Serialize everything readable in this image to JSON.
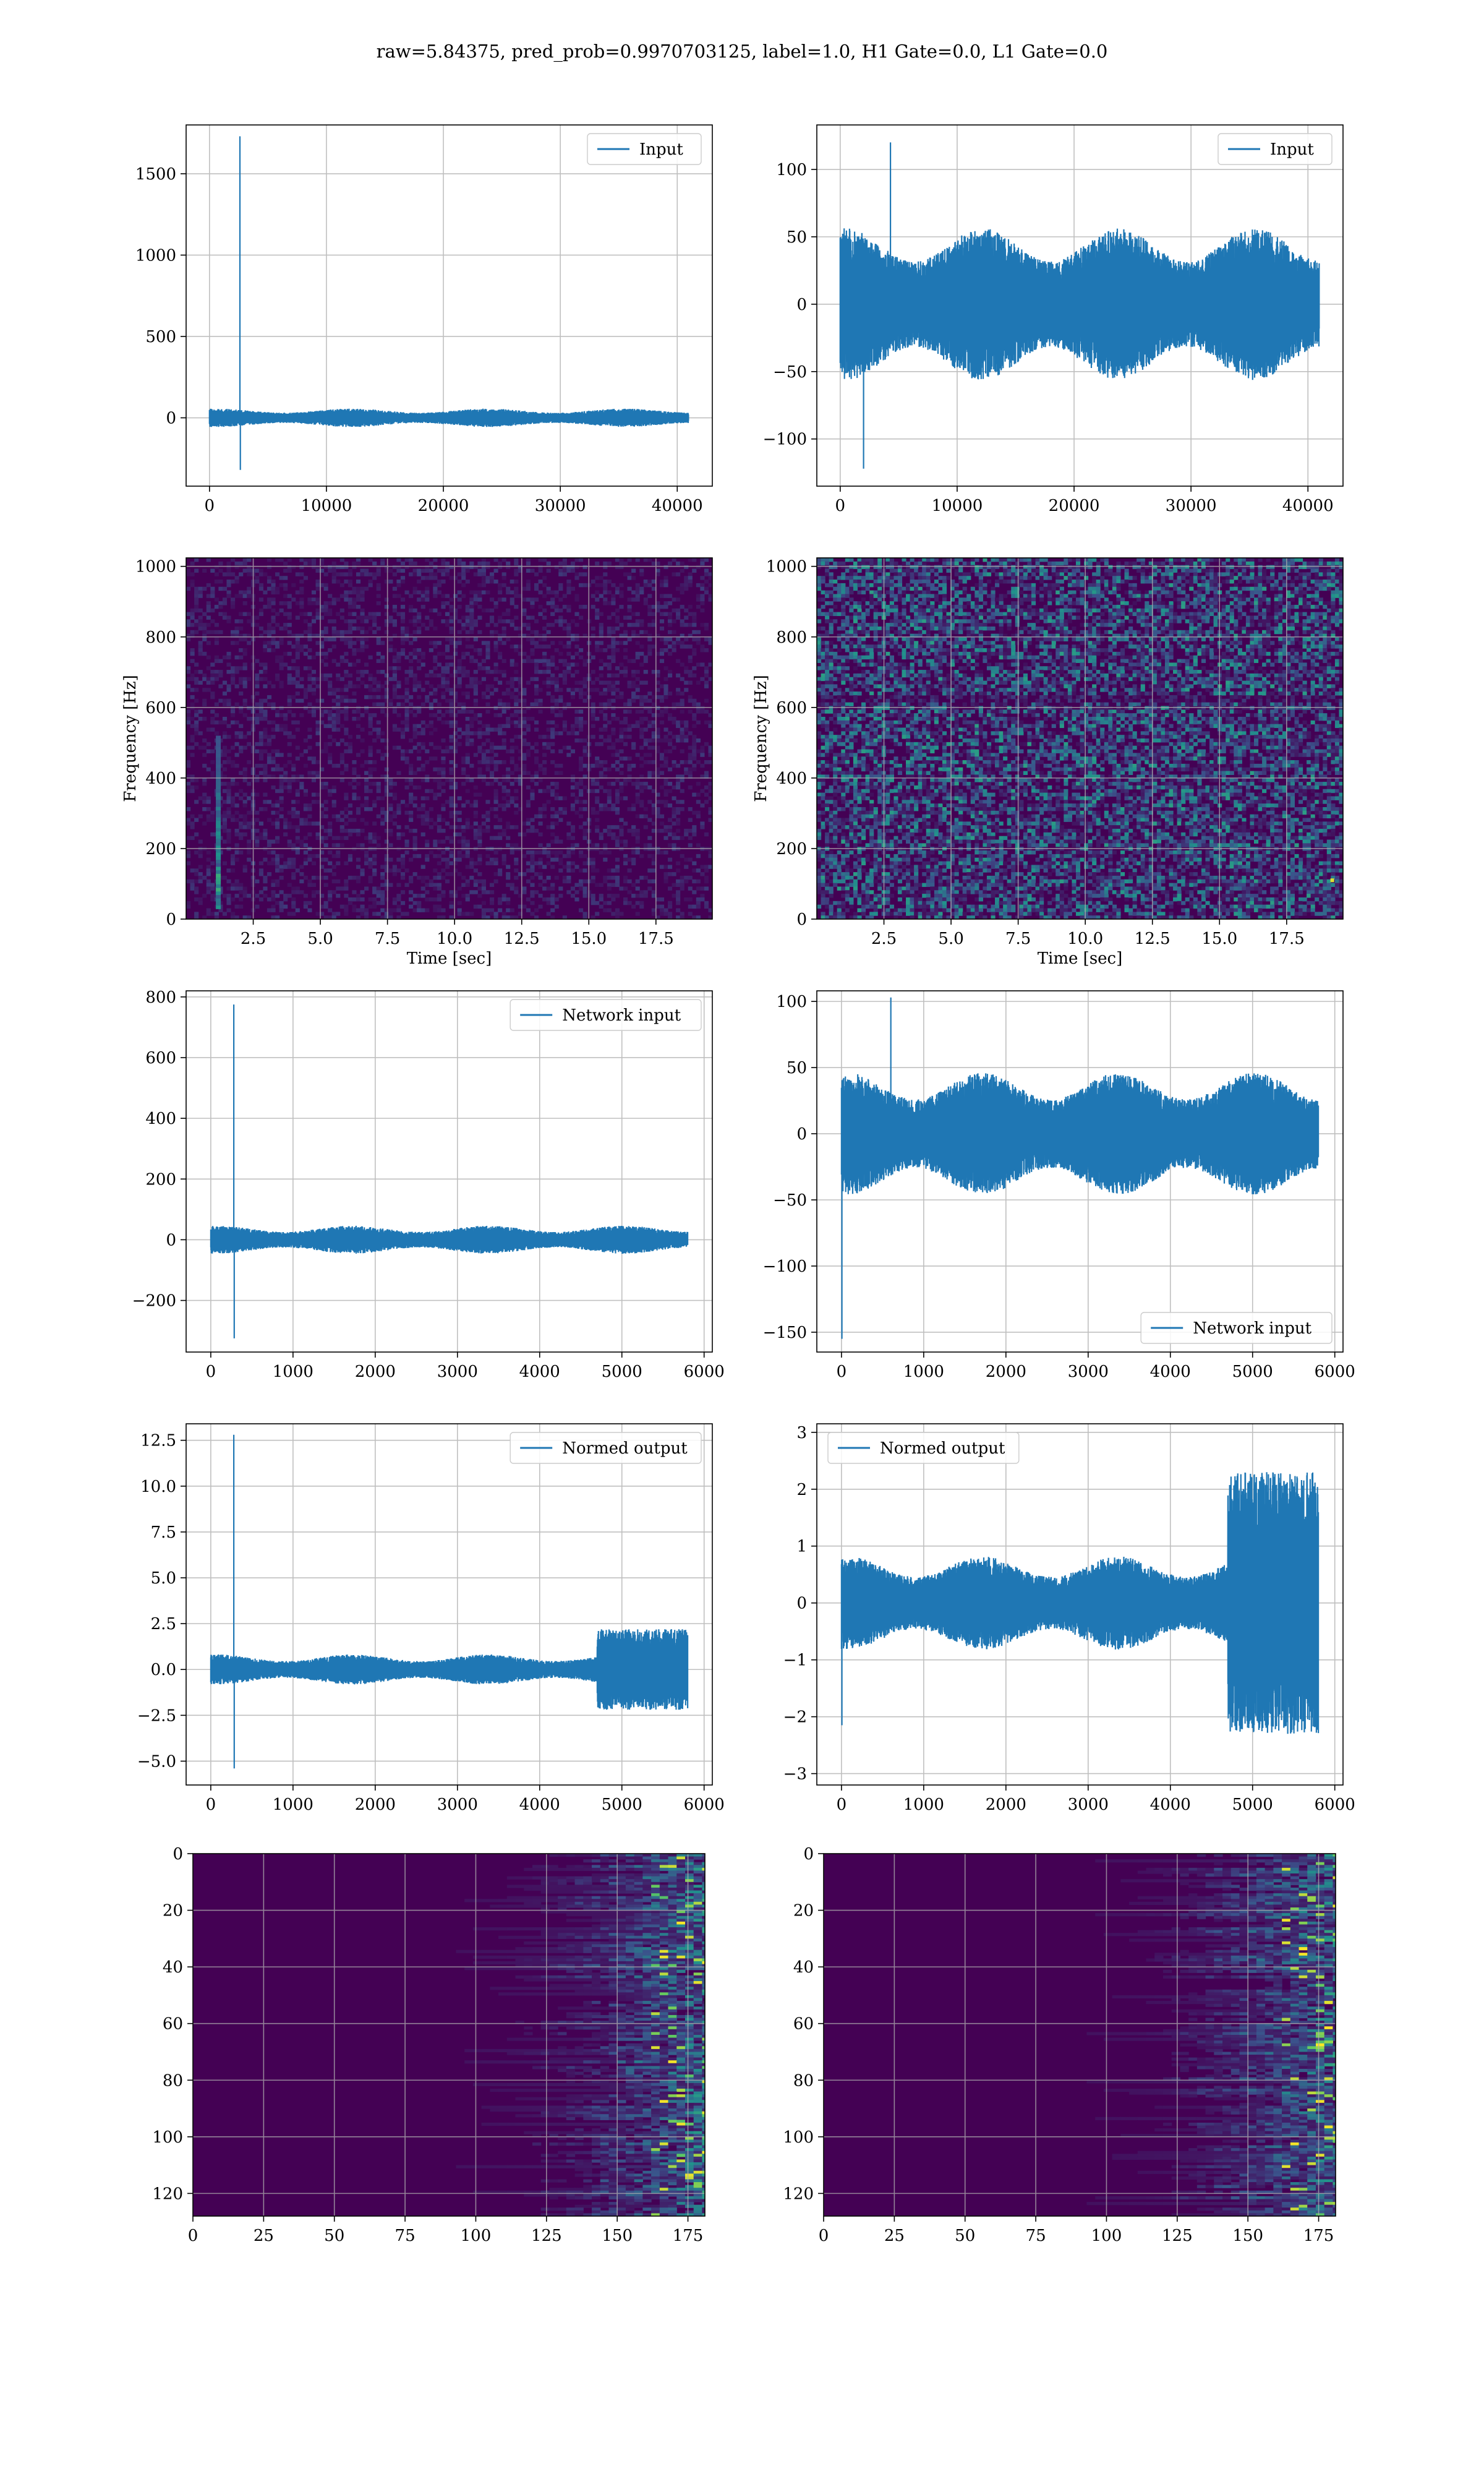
{
  "figure": {
    "title": "raw=5.84375, pred_prob=0.9970703125, label=1.0, H1 Gate=0.0, L1 Gate=0.0"
  },
  "colors": {
    "line": "#1f77b4",
    "grid": "#b0b0b0",
    "viridis_low": "#440154",
    "viridis_mid": "#21918c",
    "viridis_high": "#fde725"
  },
  "chart_data": [
    {
      "id": "input_h1",
      "type": "line",
      "grid": true,
      "xlim": [
        -2000,
        43000
      ],
      "ylim": [
        -420,
        1800
      ],
      "xticks": [
        0,
        10000,
        20000,
        30000,
        40000
      ],
      "yticks": [
        0,
        500,
        1000,
        1500
      ],
      "xlabel": "",
      "ylabel": "",
      "legend": {
        "label": "Input",
        "loc": "top-right"
      },
      "series": {
        "x_range": [
          0,
          40960
        ],
        "noise_amp": 55,
        "spikes": [
          {
            "x": 2600,
            "y": 1730
          },
          {
            "x": 2640,
            "y": -320
          }
        ]
      }
    },
    {
      "id": "input_l1",
      "type": "line",
      "grid": true,
      "xlim": [
        -2000,
        43000
      ],
      "ylim": [
        -135,
        133
      ],
      "xticks": [
        0,
        10000,
        20000,
        30000,
        40000
      ],
      "yticks": [
        -100,
        -50,
        0,
        50,
        100
      ],
      "xlabel": "",
      "ylabel": "",
      "legend": {
        "label": "Input",
        "loc": "top-right"
      },
      "series": {
        "x_range": [
          0,
          40960
        ],
        "noise_amp": 55,
        "spikes": [
          {
            "x": 4300,
            "y": 120
          },
          {
            "x": 2000,
            "y": -122
          }
        ]
      }
    },
    {
      "id": "spec_h1",
      "type": "heatmap",
      "grid": true,
      "xlim": [
        0,
        19.6
      ],
      "ylim": [
        0,
        1024
      ],
      "xticks": [
        2.5,
        5.0,
        7.5,
        10.0,
        12.5,
        15.0,
        17.5
      ],
      "yticks": [
        0,
        200,
        400,
        600,
        800,
        1000
      ],
      "xlabel": "Time [sec]",
      "ylabel": "Frequency [Hz]",
      "hotspots": [
        {
          "t": 1.2,
          "f_range": [
            30,
            520
          ]
        }
      ]
    },
    {
      "id": "spec_l1",
      "type": "heatmap",
      "grid": true,
      "xlim": [
        0,
        19.6
      ],
      "ylim": [
        0,
        1024
      ],
      "xticks": [
        2.5,
        5.0,
        7.5,
        10.0,
        12.5,
        15.0,
        17.5
      ],
      "yticks": [
        0,
        200,
        400,
        600,
        800,
        1000
      ],
      "xlabel": "Time [sec]",
      "ylabel": "Frequency [Hz]"
    },
    {
      "id": "net_h1",
      "type": "line",
      "grid": true,
      "xlim": [
        -300,
        6100
      ],
      "ylim": [
        -370,
        820
      ],
      "xticks": [
        0,
        1000,
        2000,
        3000,
        4000,
        5000,
        6000
      ],
      "yticks": [
        -200,
        0,
        200,
        400,
        600,
        800
      ],
      "xlabel": "",
      "ylabel": "",
      "legend": {
        "label": "Network input",
        "loc": "top-right"
      },
      "series": {
        "x_range": [
          0,
          5800
        ],
        "noise_amp": 45,
        "spikes": [
          {
            "x": 280,
            "y": 775
          },
          {
            "x": 285,
            "y": -325
          }
        ]
      }
    },
    {
      "id": "net_l1",
      "type": "line",
      "grid": true,
      "xlim": [
        -300,
        6100
      ],
      "ylim": [
        -165,
        108
      ],
      "xticks": [
        0,
        1000,
        2000,
        3000,
        4000,
        5000,
        6000
      ],
      "yticks": [
        -150,
        -100,
        -50,
        0,
        50,
        100
      ],
      "xlabel": "",
      "ylabel": "",
      "legend": {
        "label": "Network input",
        "loc": "bottom-right"
      },
      "series": {
        "x_range": [
          0,
          5800
        ],
        "noise_amp": 45,
        "spikes": [
          {
            "x": 5,
            "y": -155
          },
          {
            "x": 600,
            "y": 103
          }
        ]
      }
    },
    {
      "id": "norm_h1",
      "type": "line",
      "grid": true,
      "xlim": [
        -300,
        6100
      ],
      "ylim": [
        -6.3,
        13.4
      ],
      "xticks": [
        0,
        1000,
        2000,
        3000,
        4000,
        5000,
        6000
      ],
      "yticks": [
        -5.0,
        -2.5,
        0.0,
        2.5,
        5.0,
        7.5,
        10.0,
        12.5
      ],
      "xlabel": "",
      "ylabel": "",
      "legend": {
        "label": "Normed output",
        "loc": "top-right"
      },
      "series": {
        "x_range": [
          0,
          5800
        ],
        "noise_amp": 0.8,
        "burst": {
          "start": 4700,
          "amp": 2.2
        },
        "spikes": [
          {
            "x": 280,
            "y": 12.8
          },
          {
            "x": 285,
            "y": -5.4
          }
        ]
      }
    },
    {
      "id": "norm_l1",
      "type": "line",
      "grid": true,
      "xlim": [
        -300,
        6100
      ],
      "ylim": [
        -3.2,
        3.15
      ],
      "xticks": [
        0,
        1000,
        2000,
        3000,
        4000,
        5000,
        6000
      ],
      "yticks": [
        -3,
        -2,
        -1,
        0,
        1,
        2,
        3
      ],
      "xlabel": "",
      "ylabel": "",
      "legend": {
        "label": "Normed output",
        "loc": "top-left"
      },
      "series": {
        "x_range": [
          0,
          5800
        ],
        "noise_amp": 0.8,
        "burst": {
          "start": 4700,
          "amp": 2.3
        },
        "spikes": [
          {
            "x": 5,
            "y": -2.15
          }
        ]
      }
    },
    {
      "id": "feat_h1",
      "type": "heatmap",
      "grid": true,
      "xlim": [
        0,
        181
      ],
      "ylim": [
        128,
        0
      ],
      "xticks": [
        0,
        25,
        50,
        75,
        100,
        125,
        150,
        175
      ],
      "yticks": [
        0,
        20,
        40,
        60,
        80,
        100,
        120
      ],
      "xlabel": "",
      "ylabel": ""
    },
    {
      "id": "feat_l1",
      "type": "heatmap",
      "grid": true,
      "xlim": [
        0,
        181
      ],
      "ylim": [
        128,
        0
      ],
      "xticks": [
        0,
        25,
        50,
        75,
        100,
        125,
        150,
        175
      ],
      "yticks": [
        0,
        20,
        40,
        60,
        80,
        100,
        120
      ],
      "xlabel": "",
      "ylabel": ""
    }
  ]
}
